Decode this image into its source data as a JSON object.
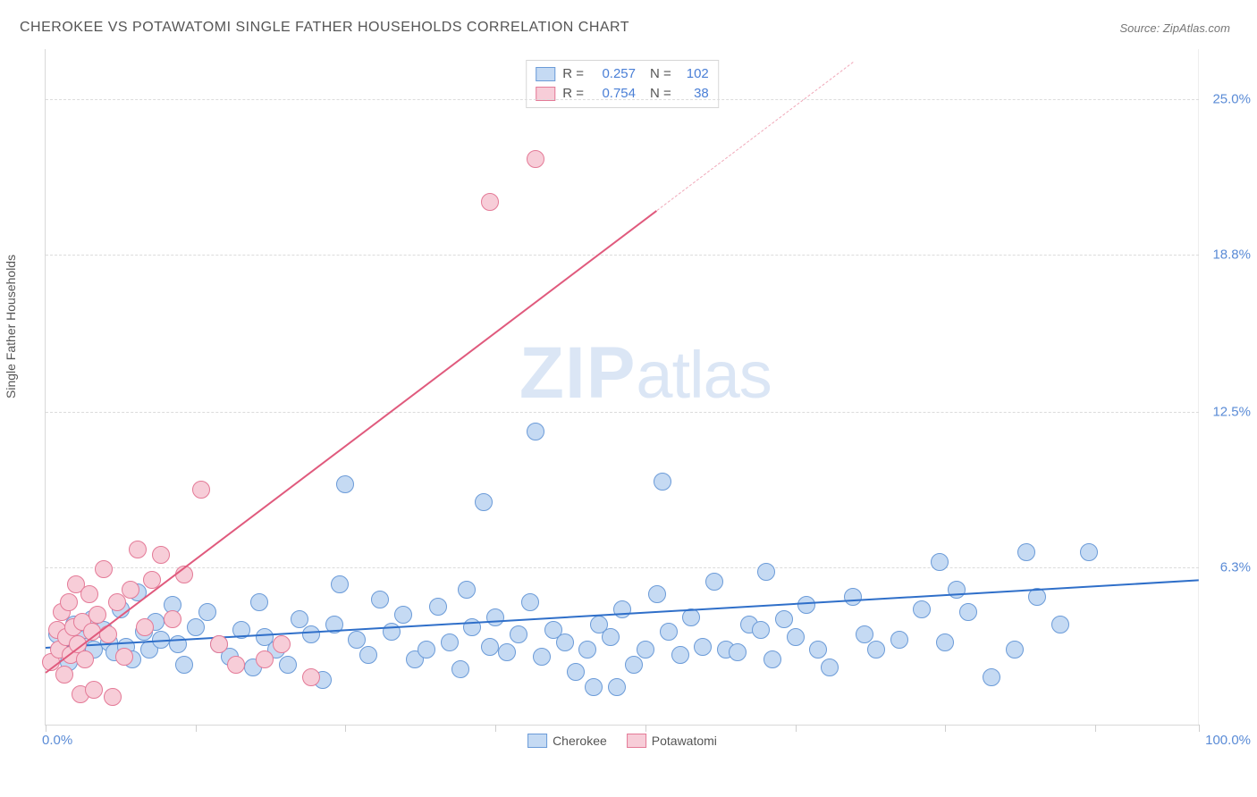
{
  "title": "CHEROKEE VS POTAWATOMI SINGLE FATHER HOUSEHOLDS CORRELATION CHART",
  "source_prefix": "Source: ",
  "source_name": "ZipAtlas.com",
  "ylabel": "Single Father Households",
  "watermark_a": "ZIP",
  "watermark_b": "atlas",
  "chart": {
    "type": "scatter",
    "background_color": "#ffffff",
    "grid_color": "#dcdcdc",
    "axis_color": "#d8d8d8",
    "xlim": [
      0,
      100
    ],
    "ylim": [
      0,
      27
    ],
    "x_ticks_at": [
      0,
      13,
      26,
      39,
      52,
      65,
      78,
      91,
      100
    ],
    "x_labels": [
      {
        "x": 0,
        "text": "0.0%"
      },
      {
        "x": 100,
        "text": "100.0%"
      }
    ],
    "y_gridlines": [
      6.3,
      12.5,
      18.8,
      25.0
    ],
    "y_labels": [
      {
        "y": 6.3,
        "text": "6.3%"
      },
      {
        "y": 12.5,
        "text": "12.5%"
      },
      {
        "y": 18.8,
        "text": "18.8%"
      },
      {
        "y": 25.0,
        "text": "25.0%"
      }
    ],
    "series": [
      {
        "name": "Cherokee",
        "fill": "#c5daf3",
        "stroke": "#6b9bd8",
        "marker_size": 18,
        "R": "0.257",
        "N": "102",
        "trend": {
          "x1": 0,
          "y1": 3.1,
          "x2": 100,
          "y2": 5.8,
          "color": "#2f6fc9",
          "width": 2.4,
          "dashed": false
        },
        "points": [
          [
            1.0,
            3.6
          ],
          [
            1.5,
            3.0
          ],
          [
            2.0,
            2.5
          ],
          [
            2.5,
            4.0
          ],
          [
            3.0,
            3.4
          ],
          [
            3.5,
            3.1
          ],
          [
            4.0,
            4.2
          ],
          [
            4.2,
            3.0
          ],
          [
            5.0,
            3.8
          ],
          [
            5.5,
            3.3
          ],
          [
            6.0,
            2.9
          ],
          [
            6.5,
            4.6
          ],
          [
            7.0,
            3.1
          ],
          [
            7.5,
            2.6
          ],
          [
            8.0,
            5.3
          ],
          [
            8.5,
            3.7
          ],
          [
            9.0,
            3.0
          ],
          [
            9.5,
            4.1
          ],
          [
            10.0,
            3.4
          ],
          [
            11.0,
            4.8
          ],
          [
            11.5,
            3.2
          ],
          [
            12.0,
            2.4
          ],
          [
            13.0,
            3.9
          ],
          [
            14.0,
            4.5
          ],
          [
            15.0,
            3.2
          ],
          [
            16.0,
            2.7
          ],
          [
            17.0,
            3.8
          ],
          [
            18.0,
            2.3
          ],
          [
            18.5,
            4.9
          ],
          [
            19.0,
            3.5
          ],
          [
            20.0,
            3.0
          ],
          [
            21.0,
            2.4
          ],
          [
            22.0,
            4.2
          ],
          [
            23.0,
            3.6
          ],
          [
            24.0,
            1.8
          ],
          [
            25.0,
            4.0
          ],
          [
            25.5,
            5.6
          ],
          [
            26.0,
            9.6
          ],
          [
            27.0,
            3.4
          ],
          [
            28.0,
            2.8
          ],
          [
            29.0,
            5.0
          ],
          [
            30.0,
            3.7
          ],
          [
            31.0,
            4.4
          ],
          [
            32.0,
            2.6
          ],
          [
            33.0,
            3.0
          ],
          [
            34.0,
            4.7
          ],
          [
            35.0,
            3.3
          ],
          [
            36.0,
            2.2
          ],
          [
            36.5,
            5.4
          ],
          [
            37.0,
            3.9
          ],
          [
            38.0,
            8.9
          ],
          [
            38.5,
            3.1
          ],
          [
            39.0,
            4.3
          ],
          [
            40.0,
            2.9
          ],
          [
            41.0,
            3.6
          ],
          [
            42.0,
            4.9
          ],
          [
            42.5,
            11.7
          ],
          [
            43.0,
            2.7
          ],
          [
            44.0,
            3.8
          ],
          [
            45.0,
            3.3
          ],
          [
            46.0,
            2.1
          ],
          [
            47.0,
            3.0
          ],
          [
            47.5,
            1.5
          ],
          [
            48.0,
            4.0
          ],
          [
            49.0,
            3.5
          ],
          [
            49.5,
            1.5
          ],
          [
            50.0,
            4.6
          ],
          [
            51.0,
            2.4
          ],
          [
            52.0,
            3.0
          ],
          [
            53.0,
            5.2
          ],
          [
            53.5,
            9.7
          ],
          [
            54.0,
            3.7
          ],
          [
            55.0,
            2.8
          ],
          [
            56.0,
            4.3
          ],
          [
            57.0,
            3.1
          ],
          [
            58.0,
            5.7
          ],
          [
            59.0,
            3.0
          ],
          [
            60.0,
            2.9
          ],
          [
            61.0,
            4.0
          ],
          [
            62.0,
            3.8
          ],
          [
            62.5,
            6.1
          ],
          [
            63.0,
            2.6
          ],
          [
            64.0,
            4.2
          ],
          [
            65.0,
            3.5
          ],
          [
            66.0,
            4.8
          ],
          [
            67.0,
            3.0
          ],
          [
            68.0,
            2.3
          ],
          [
            70.0,
            5.1
          ],
          [
            71.0,
            3.6
          ],
          [
            72.0,
            3.0
          ],
          [
            76.0,
            4.6
          ],
          [
            77.5,
            6.5
          ],
          [
            78.0,
            3.3
          ],
          [
            79.0,
            5.4
          ],
          [
            80.0,
            4.5
          ],
          [
            82.0,
            1.9
          ],
          [
            84.0,
            3.0
          ],
          [
            85.0,
            6.9
          ],
          [
            86.0,
            5.1
          ],
          [
            90.5,
            6.9
          ],
          [
            74.0,
            3.4
          ],
          [
            88.0,
            4.0
          ]
        ]
      },
      {
        "name": "Potawatomi",
        "fill": "#f7cdd8",
        "stroke": "#e47a97",
        "marker_size": 18,
        "R": "0.754",
        "N": "38",
        "trend": {
          "x1": 0,
          "y1": 2.1,
          "x2": 70,
          "y2": 26.5,
          "color": "#e05a7d",
          "width": 2.0,
          "dashed": false
        },
        "trend_extend": {
          "x1": 53,
          "y1": 20.6,
          "x2": 70,
          "y2": 26.5,
          "color": "#f0a8b9",
          "width": 1.2,
          "dashed": true
        },
        "points": [
          [
            0.5,
            2.5
          ],
          [
            1.0,
            3.8
          ],
          [
            1.2,
            3.0
          ],
          [
            1.4,
            4.5
          ],
          [
            1.6,
            2.0
          ],
          [
            1.8,
            3.5
          ],
          [
            2.0,
            4.9
          ],
          [
            2.2,
            2.8
          ],
          [
            2.4,
            3.9
          ],
          [
            2.6,
            5.6
          ],
          [
            2.8,
            3.2
          ],
          [
            3.0,
            1.2
          ],
          [
            3.2,
            4.1
          ],
          [
            3.4,
            2.6
          ],
          [
            3.8,
            5.2
          ],
          [
            4.0,
            3.7
          ],
          [
            4.2,
            1.4
          ],
          [
            4.5,
            4.4
          ],
          [
            5.0,
            6.2
          ],
          [
            5.4,
            3.6
          ],
          [
            5.8,
            1.1
          ],
          [
            6.2,
            4.9
          ],
          [
            6.8,
            2.7
          ],
          [
            7.4,
            5.4
          ],
          [
            8.0,
            7.0
          ],
          [
            8.6,
            3.9
          ],
          [
            9.2,
            5.8
          ],
          [
            10.0,
            6.8
          ],
          [
            11.0,
            4.2
          ],
          [
            12.0,
            6.0
          ],
          [
            13.5,
            9.4
          ],
          [
            15.0,
            3.2
          ],
          [
            16.5,
            2.4
          ],
          [
            19.0,
            2.6
          ],
          [
            20.5,
            3.2
          ],
          [
            23.0,
            1.9
          ],
          [
            38.5,
            20.9
          ],
          [
            42.5,
            22.6
          ]
        ]
      }
    ]
  },
  "legend_bottom": [
    {
      "label": "Cherokee",
      "fill": "#c5daf3",
      "stroke": "#6b9bd8"
    },
    {
      "label": "Potawatomi",
      "fill": "#f7cdd8",
      "stroke": "#e47a97"
    }
  ]
}
